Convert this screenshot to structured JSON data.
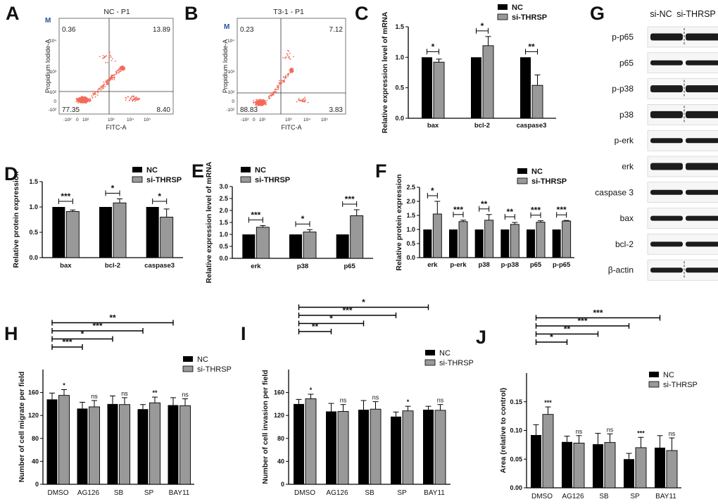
{
  "figure": {
    "panels": {
      "A": "A",
      "B": "B",
      "C": "C",
      "D": "D",
      "E": "E",
      "F": "F",
      "G": "G",
      "H": "H",
      "I": "I",
      "J": "J"
    }
  },
  "flow": [
    {
      "title": "NC - P1",
      "marker": "M",
      "quadrants": {
        "ul": "0.36",
        "ur": "13.89",
        "ll": "77.35",
        "lr": "8.40"
      },
      "xlabel": "FITC-A",
      "ylabel": "Propidium Iodide-A",
      "xticks": [
        "-10²",
        "0",
        "10²",
        "10³",
        "10⁴",
        "10⁵"
      ],
      "yticks": [
        "10⁴",
        "10³",
        "10²",
        "0",
        "-10²"
      ],
      "color": "#f26a5a"
    },
    {
      "title": "T3-1 - P1",
      "marker": "M",
      "quadrants": {
        "ul": "0.23",
        "ur": "7.12",
        "ll": "88.83",
        "lr": "3.83"
      },
      "xlabel": "FITC-A",
      "ylabel": "Propidium Iodide-A",
      "xticks": [
        "-10²",
        "0",
        "10²",
        "10³",
        "10⁴",
        "10⁵"
      ],
      "yticks": [
        "10⁴",
        "10³",
        "10²",
        "0",
        "-10²"
      ],
      "color": "#f26a5a"
    }
  ],
  "western": {
    "headers": [
      "si-NC",
      "si-THRSP"
    ],
    "bands": [
      "p-p65",
      "p65",
      "p-p38",
      "p38",
      "p-erk",
      "erk",
      "caspase 3",
      "bax",
      "bcl-2",
      "β-actin"
    ],
    "dashed_rows": [
      "p-p65",
      "p-p38",
      "p38",
      "β-actin"
    ]
  },
  "colors": {
    "nc": "#000000",
    "si": "#999999"
  },
  "chart_data": [
    {
      "id": "C",
      "type": "bar",
      "ylabel": "Relative  expression level of mRNA",
      "legend": [
        "NC",
        "si-THRSP"
      ],
      "categories": [
        "bax",
        "bcl-2",
        "caspase3"
      ],
      "series": [
        {
          "name": "NC",
          "values": [
            1.0,
            1.0,
            1.0
          ],
          "err": [
            0,
            0,
            0
          ]
        },
        {
          "name": "si-THRSP",
          "values": [
            0.92,
            1.19,
            0.54
          ],
          "err": [
            0.05,
            0.15,
            0.17
          ]
        }
      ],
      "ylim": [
        0,
        1.5
      ],
      "yticks": [
        "0.0",
        "0.5",
        "1.0",
        "1.5"
      ],
      "significance": [
        "*",
        "*",
        "**"
      ]
    },
    {
      "id": "D",
      "type": "bar",
      "ylabel": "Relative protein expression",
      "legend": [
        "NC",
        "si-THRSP"
      ],
      "categories": [
        "bax",
        "bcl-2",
        "caspase3"
      ],
      "series": [
        {
          "name": "NC",
          "values": [
            1.0,
            1.0,
            1.0
          ],
          "err": [
            0,
            0,
            0
          ]
        },
        {
          "name": "si-THRSP",
          "values": [
            0.91,
            1.08,
            0.8
          ],
          "err": [
            0.03,
            0.08,
            0.16
          ]
        }
      ],
      "ylim": [
        0,
        1.5
      ],
      "yticks": [
        "0.0",
        "0.5",
        "1.0",
        "1.5"
      ],
      "significance": [
        "***",
        "*",
        "*"
      ]
    },
    {
      "id": "E",
      "type": "bar",
      "ylabel": "Relative  expression level of mRNA",
      "legend": [
        "NC",
        "si-THRSP"
      ],
      "categories": [
        "erk",
        "p38",
        "p65"
      ],
      "series": [
        {
          "name": "NC",
          "values": [
            1.0,
            1.0,
            1.0
          ],
          "err": [
            0,
            0,
            0
          ]
        },
        {
          "name": "si-THRSP",
          "values": [
            1.3,
            1.1,
            1.78
          ],
          "err": [
            0.07,
            0.1,
            0.25
          ]
        }
      ],
      "ylim": [
        0,
        3.0
      ],
      "yticks": [
        "0.0",
        "0.5",
        "1.0",
        "1.5",
        "2.0",
        "2.5",
        "3.0"
      ],
      "significance": [
        "***",
        "*",
        "***"
      ]
    },
    {
      "id": "F",
      "type": "bar",
      "ylabel": "Relative protein expression",
      "legend": [
        "NC",
        "si-THRSP"
      ],
      "categories": [
        "erk",
        "p-erk",
        "p38",
        "p-p38",
        "p65",
        "p-p65"
      ],
      "series": [
        {
          "name": "NC",
          "values": [
            1.0,
            1.0,
            1.0,
            1.0,
            1.0,
            1.0
          ],
          "err": [
            0,
            0,
            0,
            0,
            0,
            0
          ]
        },
        {
          "name": "si-THRSP",
          "values": [
            1.55,
            1.28,
            1.33,
            1.18,
            1.26,
            1.3
          ],
          "err": [
            0.45,
            0.05,
            0.2,
            0.07,
            0.05,
            0.02
          ]
        }
      ],
      "ylim": [
        0,
        2.5
      ],
      "yticks": [
        "0.0",
        "0.5",
        "1.0",
        "1.5",
        "2.0",
        "2.5"
      ],
      "significance": [
        "*",
        "***",
        "**",
        "**",
        "***",
        "***"
      ]
    },
    {
      "id": "H",
      "type": "bar",
      "ylabel": "Number of cell migrate per field",
      "legend": [
        "NC",
        "si-THRSP"
      ],
      "categories": [
        "DMSO",
        "AG126",
        "SB",
        "SP",
        "BAY11"
      ],
      "series": [
        {
          "name": "NC",
          "values": [
            148,
            132,
            140,
            131,
            138
          ],
          "err": [
            11,
            11,
            14,
            8,
            13
          ]
        },
        {
          "name": "si-THRSP",
          "values": [
            155,
            135,
            139,
            142,
            137
          ],
          "err": [
            10,
            11,
            12,
            10,
            12
          ]
        }
      ],
      "ylim": [
        0,
        200
      ],
      "yticks": [
        "0",
        "40",
        "80",
        "120",
        "160"
      ],
      "above": [
        "*",
        "ns",
        "ns",
        "**",
        "ns"
      ],
      "brackets": [
        "***",
        "*",
        "***",
        "**"
      ]
    },
    {
      "id": "I",
      "type": "bar",
      "ylabel": "Number of cell invasion per field",
      "legend": [
        "NC",
        "si-THRSP"
      ],
      "categories": [
        "DMSO",
        "AG126",
        "SB",
        "SP",
        "BAY11"
      ],
      "series": [
        {
          "name": "NC",
          "values": [
            140,
            127,
            130,
            118,
            130
          ],
          "err": [
            8,
            14,
            16,
            8,
            6
          ]
        },
        {
          "name": "si-THRSP",
          "values": [
            149,
            127,
            131,
            128,
            129
          ],
          "err": [
            8,
            12,
            13,
            8,
            10
          ]
        }
      ],
      "ylim": [
        0,
        200
      ],
      "yticks": [
        "0",
        "40",
        "80",
        "120",
        "160"
      ],
      "above": [
        "*",
        "ns",
        "ns",
        "*",
        "ns"
      ],
      "brackets": [
        "**",
        "*",
        "***",
        "*"
      ]
    },
    {
      "id": "J",
      "type": "bar",
      "ylabel": "Area (relative to control)",
      "legend": [
        "NC",
        "si-THRSP"
      ],
      "categories": [
        "DMSO",
        "AG126",
        "SB",
        "SP",
        "BAY11"
      ],
      "series": [
        {
          "name": "NC",
          "values": [
            0.092,
            0.08,
            0.076,
            0.05,
            0.07
          ],
          "err": [
            0.018,
            0.01,
            0.019,
            0.01,
            0.021
          ]
        },
        {
          "name": "si-THRSP",
          "values": [
            0.128,
            0.078,
            0.079,
            0.07,
            0.065
          ],
          "err": [
            0.013,
            0.013,
            0.015,
            0.018,
            0.022
          ]
        }
      ],
      "ylim": [
        0,
        0.2
      ],
      "yticks": [
        "0.00",
        "0.05",
        "0.10",
        "0.15"
      ],
      "above": [
        "***",
        "ns",
        "ns",
        "***",
        "ns"
      ],
      "brackets": [
        "*",
        "**",
        "***",
        "***"
      ]
    }
  ]
}
